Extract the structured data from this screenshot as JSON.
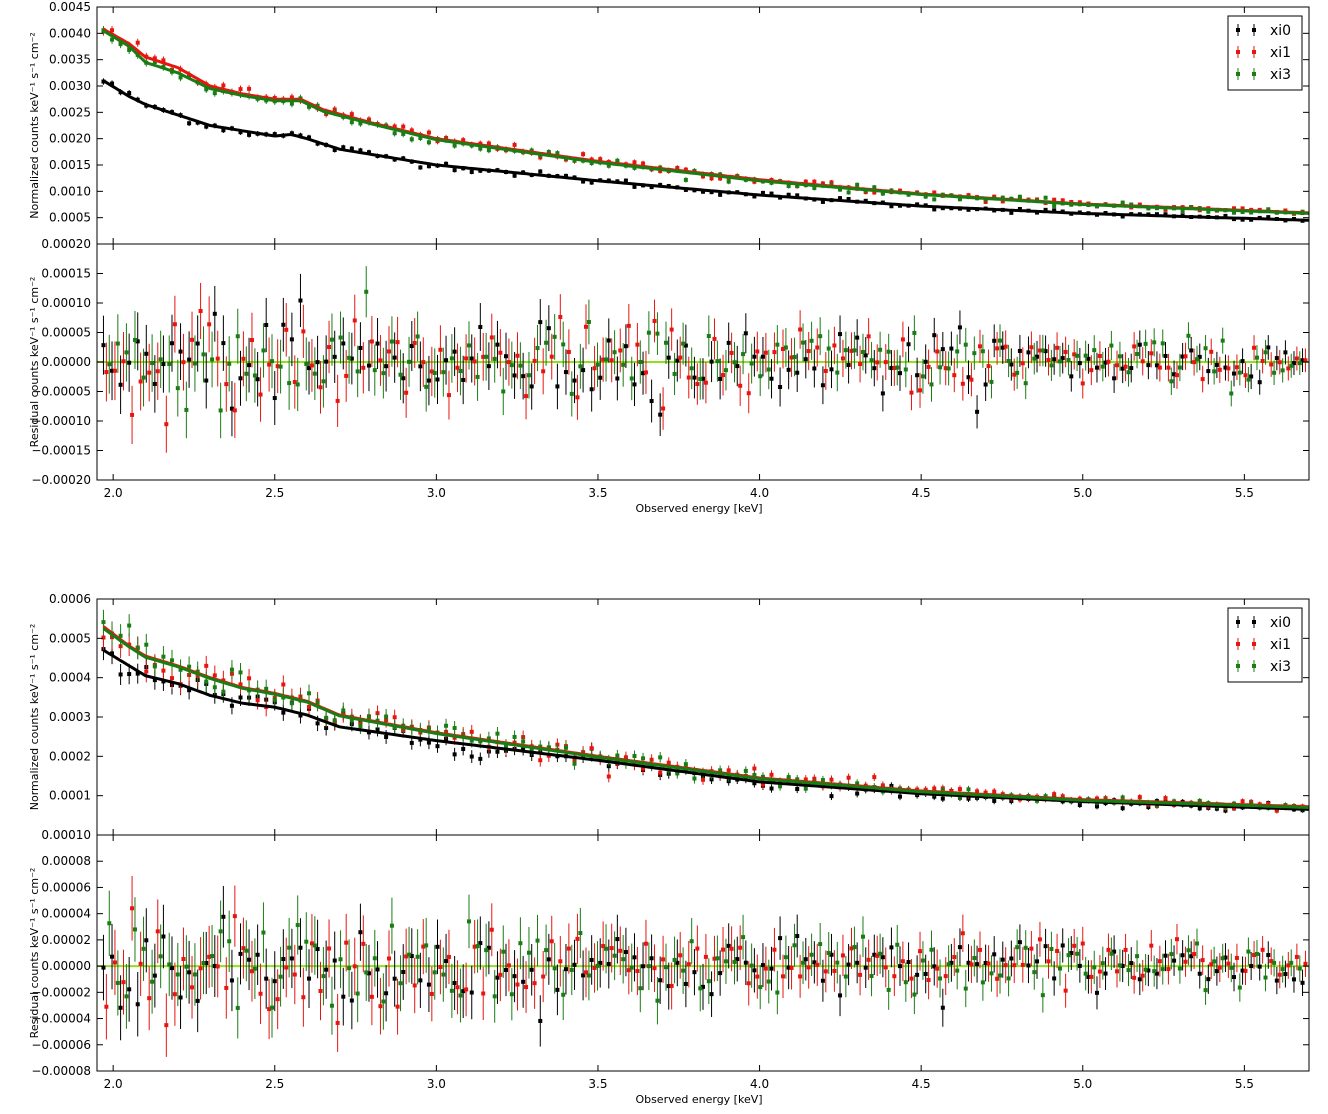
{
  "colors": {
    "xi0": "#000000",
    "xi1": "#e8150f",
    "xi3": "#1a7d14",
    "zero_line": "#8fe01f"
  },
  "chart_data": [
    {
      "type": "scatter",
      "role": "spectrum",
      "ylabel": "Normalized counts keV⁻¹ s⁻¹ cm⁻²",
      "xlim": [
        1.95,
        5.7
      ],
      "ylim": [
        0.0,
        0.0045
      ],
      "yticks": [
        "0.0005",
        "0.0010",
        "0.0015",
        "0.0020",
        "0.0025",
        "0.0030",
        "0.0035",
        "0.0040",
        "0.0045"
      ],
      "ytick_values": [
        0.0005,
        0.001,
        0.0015,
        0.002,
        0.0025,
        0.003,
        0.0035,
        0.004,
        0.0045
      ],
      "legend": {
        "placement": "top-right",
        "entries": [
          "xi0",
          "xi1",
          "xi3"
        ]
      },
      "series": [
        {
          "name": "xi0",
          "model": [
            [
              1.97,
              0.0031
            ],
            [
              2.05,
              0.0028
            ],
            [
              2.1,
              0.00265
            ],
            [
              2.2,
              0.00245
            ],
            [
              2.3,
              0.00225
            ],
            [
              2.4,
              0.00215
            ],
            [
              2.5,
              0.00205
            ],
            [
              2.55,
              0.00208
            ],
            [
              2.6,
              0.002
            ],
            [
              2.7,
              0.0018
            ],
            [
              3.0,
              0.0015
            ],
            [
              3.5,
              0.0012
            ],
            [
              4.0,
              0.00093
            ],
            [
              4.5,
              0.00072
            ],
            [
              5.0,
              0.00058
            ],
            [
              5.7,
              0.00045
            ]
          ]
        },
        {
          "name": "xi1",
          "model": [
            [
              1.97,
              0.00408
            ],
            [
              2.05,
              0.0038
            ],
            [
              2.1,
              0.00355
            ],
            [
              2.2,
              0.00335
            ],
            [
              2.3,
              0.003
            ],
            [
              2.4,
              0.00285
            ],
            [
              2.5,
              0.00275
            ],
            [
              2.58,
              0.00275
            ],
            [
              2.65,
              0.00255
            ],
            [
              2.8,
              0.0023
            ],
            [
              3.0,
              0.002
            ],
            [
              3.5,
              0.00157
            ],
            [
              4.0,
              0.00122
            ],
            [
              4.5,
              0.00095
            ],
            [
              5.0,
              0.00076
            ],
            [
              5.7,
              0.00059
            ]
          ]
        },
        {
          "name": "xi3",
          "model": [
            [
              1.97,
              0.00405
            ],
            [
              2.05,
              0.00375
            ],
            [
              2.1,
              0.00345
            ],
            [
              2.2,
              0.00325
            ],
            [
              2.3,
              0.00295
            ],
            [
              2.4,
              0.00282
            ],
            [
              2.5,
              0.00272
            ],
            [
              2.58,
              0.00272
            ],
            [
              2.65,
              0.00252
            ],
            [
              2.8,
              0.00228
            ],
            [
              3.0,
              0.00198
            ],
            [
              3.5,
              0.00155
            ],
            [
              4.0,
              0.0012
            ],
            [
              4.5,
              0.00094
            ],
            [
              5.0,
              0.00075
            ],
            [
              5.7,
              0.00058
            ]
          ]
        }
      ]
    },
    {
      "type": "scatter",
      "role": "residuals",
      "xlabel": "Observed energy [keV]",
      "ylabel": "Residual counts keV⁻¹ s⁻¹ cm⁻²",
      "xlim": [
        1.95,
        5.7
      ],
      "ylim": [
        -0.0002,
        0.0002
      ],
      "xticks": [
        "2.0",
        "2.5",
        "3.0",
        "3.5",
        "4.0",
        "4.5",
        "5.0",
        "5.5"
      ],
      "xtick_values": [
        2.0,
        2.5,
        3.0,
        3.5,
        4.0,
        4.5,
        5.0,
        5.5
      ],
      "yticks": [
        "−0.00020",
        "−0.00015",
        "−0.00010",
        "−0.00005",
        "0.00000",
        "0.00005",
        "0.00010",
        "0.00015",
        "0.00020"
      ],
      "ytick_values": [
        -0.0002,
        -0.00015,
        -0.0001,
        -5e-05,
        0,
        5e-05,
        0.0001,
        0.00015,
        0.0002
      ],
      "noise_start": 5.5e-05,
      "noise_end": 2.5e-05,
      "error_start": 5e-05,
      "error_end": 2e-05
    },
    {
      "type": "scatter",
      "role": "spectrum",
      "ylabel": "Normalized counts keV⁻¹ s⁻¹ cm⁻²",
      "xlim": [
        1.95,
        5.7
      ],
      "ylim": [
        0.0,
        0.0006
      ],
      "yticks": [
        "0.0001",
        "0.0002",
        "0.0003",
        "0.0004",
        "0.0005",
        "0.0006"
      ],
      "ytick_values": [
        0.0001,
        0.0002,
        0.0003,
        0.0004,
        0.0005,
        0.0006
      ],
      "legend": {
        "placement": "top-right",
        "entries": [
          "xi0",
          "xi1",
          "xi3"
        ]
      },
      "series": [
        {
          "name": "xi0",
          "model": [
            [
              1.97,
              0.00047
            ],
            [
              2.05,
              0.00043
            ],
            [
              2.1,
              0.000405
            ],
            [
              2.2,
              0.000385
            ],
            [
              2.3,
              0.000355
            ],
            [
              2.4,
              0.000335
            ],
            [
              2.5,
              0.000325
            ],
            [
              2.6,
              0.000305
            ],
            [
              2.7,
              0.000275
            ],
            [
              3.0,
              0.00024
            ],
            [
              3.5,
              0.00019
            ],
            [
              4.0,
              0.000135
            ],
            [
              4.5,
              0.000105
            ],
            [
              5.0,
              8.5e-05
            ],
            [
              5.7,
              6.5e-05
            ]
          ]
        },
        {
          "name": "xi1",
          "model": [
            [
              1.97,
              0.00053
            ],
            [
              2.05,
              0.00048
            ],
            [
              2.1,
              0.000455
            ],
            [
              2.2,
              0.00043
            ],
            [
              2.3,
              0.0004
            ],
            [
              2.4,
              0.000375
            ],
            [
              2.5,
              0.00036
            ],
            [
              2.6,
              0.00034
            ],
            [
              2.7,
              0.000305
            ],
            [
              3.0,
              0.00026
            ],
            [
              3.5,
              0.0002
            ],
            [
              4.0,
              0.000145
            ],
            [
              4.5,
              0.000112
            ],
            [
              5.0,
              9e-05
            ],
            [
              5.7,
              7.2e-05
            ]
          ]
        },
        {
          "name": "xi3",
          "model": [
            [
              1.97,
              0.000525
            ],
            [
              2.05,
              0.000478
            ],
            [
              2.1,
              0.000452
            ],
            [
              2.2,
              0.000428
            ],
            [
              2.3,
              0.000398
            ],
            [
              2.4,
              0.000373
            ],
            [
              2.5,
              0.000358
            ],
            [
              2.6,
              0.000338
            ],
            [
              2.7,
              0.000303
            ],
            [
              3.0,
              0.000258
            ],
            [
              3.5,
              0.000198
            ],
            [
              4.0,
              0.000143
            ],
            [
              4.5,
              0.00011
            ],
            [
              5.0,
              8.8e-05
            ],
            [
              5.7,
              7e-05
            ]
          ]
        }
      ]
    },
    {
      "type": "scatter",
      "role": "residuals",
      "xlabel": "Observed energy [keV]",
      "ylabel": "Residual counts keV⁻¹ s⁻¹ cm⁻²",
      "xlim": [
        1.95,
        5.7
      ],
      "ylim": [
        -8e-05,
        0.0001
      ],
      "xticks": [
        "2.0",
        "2.5",
        "3.0",
        "3.5",
        "4.0",
        "4.5",
        "5.0",
        "5.5"
      ],
      "xtick_values": [
        2.0,
        2.5,
        3.0,
        3.5,
        4.0,
        4.5,
        5.0,
        5.5
      ],
      "yticks": [
        "−0.00008",
        "−0.00006",
        "−0.00004",
        "−0.00002",
        "0.00000",
        "0.00002",
        "0.00004",
        "0.00006",
        "0.00008",
        "0.00010"
      ],
      "ytick_values": [
        -8e-05,
        -6e-05,
        -4e-05,
        -2e-05,
        0,
        2e-05,
        4e-05,
        6e-05,
        8e-05,
        0.0001
      ],
      "noise_start": 2.5e-05,
      "noise_end": 1e-05,
      "error_start": 2.5e-05,
      "error_end": 1e-05
    }
  ]
}
